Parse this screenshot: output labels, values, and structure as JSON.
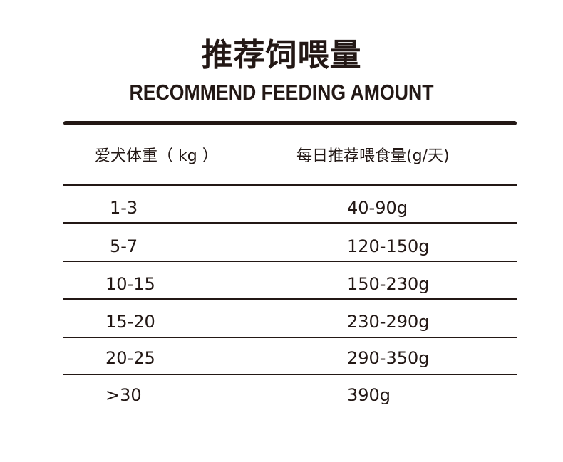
{
  "title": "推荐饲喂量",
  "subtitle": "RECOMMEND FEEDING AMOUNT",
  "table": {
    "headers": [
      "爱犬体重（ kg ）",
      "每日推荐喂食量(g/天)"
    ],
    "rows": [
      [
        "1-3",
        "40-90g"
      ],
      [
        "5-7",
        "120-150g"
      ],
      [
        "10-15",
        "150-230g"
      ],
      [
        "15-20",
        "230-290g"
      ],
      [
        "20-25",
        "290-350g"
      ],
      [
        ">30",
        "390g"
      ]
    ]
  }
}
